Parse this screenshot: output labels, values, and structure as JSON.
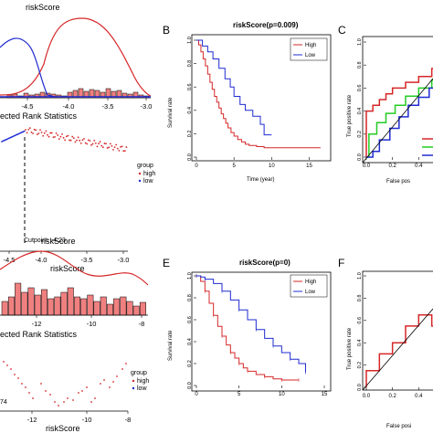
{
  "panels": {
    "a_top_title": "riskScore",
    "a_top_ticks": [
      "-4.5",
      "-4.0",
      "-3.5",
      "-3.0"
    ],
    "a_mid_title": "ected Rank Statistics",
    "a_bot_ticks": [
      "-4.5",
      "-4.0",
      "-3.5",
      "-3.0"
    ],
    "a_bot_xlabel": "riskScore",
    "a_cutpoint": "Cutpoint: -4.23",
    "a_group_title": "group",
    "a_group_high": "high",
    "a_group_low": "low",
    "b_label": "B",
    "b_title": "riskScore(p=0.009)",
    "b_ylabel": "Survival rate",
    "b_xlabel": "Time (year)",
    "b_yticks": [
      "0.0",
      "0.2",
      "0.4",
      "0.6",
      "0.8",
      "1.0"
    ],
    "b_xticks": [
      "0",
      "5",
      "10",
      "15"
    ],
    "b_legend_high": "High",
    "b_legend_low": "Low",
    "c_label": "C",
    "c_ylabel": "True positive rate",
    "c_xlabel": "False pos",
    "c_yticks": [
      "0.0",
      "0.2",
      "0.4",
      "0.6",
      "0.8",
      "1.0"
    ],
    "c_xticks": [
      "0.0",
      "0.2",
      "0.4"
    ],
    "d_top_title": "riskScore",
    "d_top_ticks": [
      "-12",
      "-10",
      "-8"
    ],
    "d_mid_title": "ected Rank Statistics",
    "d_bot_ticks": [
      "-12",
      "-10",
      "-8"
    ],
    "d_bot_xlabel": "riskScore",
    "d_cut_partial": "74",
    "d_group_title": "group",
    "d_group_high": "high",
    "d_group_low": "low",
    "e_label": "E",
    "e_title": "riskScore(p=0)",
    "e_ylabel": "Survival rate",
    "e_yticks": [
      "0.0",
      "0.2",
      "0.4",
      "0.6",
      "0.8",
      "1.0"
    ],
    "e_xticks": [
      "0",
      "5",
      "10",
      "15"
    ],
    "e_legend_high": "High",
    "e_legend_low": "Low",
    "f_label": "F",
    "f_ylabel": "True positive rate",
    "f_xlabel": "False posi",
    "f_yticks": [
      "0.0",
      "0.2",
      "0.4",
      "0.6",
      "0.8",
      "1.0"
    ],
    "f_xticks": [
      "0.0",
      "0.2",
      "0.4"
    ]
  },
  "colors": {
    "high": "#d62728",
    "low": "#1f2bd1",
    "green": "#22cc22",
    "hist": "#f08080"
  },
  "chart_data": [
    {
      "type": "line",
      "panel": "B",
      "title": "riskScore(p=0.009)",
      "xlabel": "Time (year)",
      "ylabel": "Survival rate",
      "xlim": [
        0,
        17
      ],
      "ylim": [
        0,
        1
      ],
      "series": [
        {
          "name": "High",
          "x": [
            0,
            0.3,
            0.6,
            0.9,
            1.2,
            1.5,
            1.8,
            2.1,
            2.4,
            2.7,
            3.0,
            3.3,
            3.6,
            3.9,
            4.2,
            4.6,
            5.0,
            5.5,
            6.0,
            6.5,
            7.0,
            8.0,
            9.0,
            10.0,
            12.0,
            16.5
          ],
          "y": [
            1.0,
            0.96,
            0.9,
            0.84,
            0.78,
            0.71,
            0.64,
            0.58,
            0.52,
            0.47,
            0.42,
            0.37,
            0.33,
            0.29,
            0.25,
            0.21,
            0.18,
            0.15,
            0.13,
            0.11,
            0.1,
            0.09,
            0.08,
            0.08,
            0.08,
            0.08
          ]
        },
        {
          "name": "Low",
          "x": [
            0,
            0.8,
            1.5,
            2.2,
            3.0,
            3.8,
            4.5,
            5.0,
            5.8,
            6.5,
            7.5,
            8.5,
            9.0,
            10.0
          ],
          "y": [
            1.0,
            0.95,
            0.9,
            0.84,
            0.76,
            0.67,
            0.6,
            0.52,
            0.45,
            0.4,
            0.35,
            0.28,
            0.19,
            0.19
          ]
        }
      ]
    },
    {
      "type": "line",
      "panel": "E",
      "title": "riskScore(p=0)",
      "ylabel": "Survival rate",
      "xlim": [
        0,
        15
      ],
      "ylim": [
        0,
        1
      ],
      "series": [
        {
          "name": "High",
          "x": [
            0,
            0.5,
            1.0,
            1.5,
            2.0,
            2.5,
            3.0,
            3.5,
            4.0,
            4.5,
            5.0,
            5.5,
            6.0,
            7.0,
            8.0,
            9.0,
            10.0,
            11.0,
            12.0
          ],
          "y": [
            1.0,
            0.95,
            0.86,
            0.75,
            0.64,
            0.54,
            0.45,
            0.37,
            0.3,
            0.25,
            0.2,
            0.16,
            0.13,
            0.1,
            0.08,
            0.06,
            0.05,
            0.05,
            0.05
          ]
        },
        {
          "name": "Low",
          "x": [
            0,
            0.5,
            1.0,
            2.0,
            3.0,
            4.0,
            5.0,
            6.0,
            7.0,
            8.0,
            9.0,
            10.0,
            11.0,
            12.0,
            12.8
          ],
          "y": [
            1.0,
            0.99,
            0.97,
            0.93,
            0.86,
            0.78,
            0.69,
            0.6,
            0.51,
            0.43,
            0.36,
            0.3,
            0.24,
            0.2,
            0.12
          ]
        }
      ]
    },
    {
      "type": "line",
      "panel": "C",
      "ylabel": "True positive rate",
      "xlabel": "False pos",
      "xlim": [
        0,
        0.6
      ],
      "ylim": [
        0,
        1
      ],
      "series": [
        {
          "x": [
            0,
            0.0,
            0.05,
            0.1,
            0.15,
            0.2,
            0.3,
            0.4,
            0.5,
            0.55
          ],
          "y": [
            0,
            0.4,
            0.45,
            0.5,
            0.55,
            0.6,
            0.65,
            0.7,
            0.77,
            0.8
          ]
        },
        {
          "x": [
            0,
            0.02,
            0.08,
            0.15,
            0.22,
            0.3,
            0.4,
            0.5,
            0.55
          ],
          "y": [
            0,
            0.2,
            0.3,
            0.38,
            0.45,
            0.53,
            0.6,
            0.67,
            0.7
          ]
        },
        {
          "x": [
            0,
            0.05,
            0.1,
            0.18,
            0.25,
            0.32,
            0.4,
            0.48,
            0.55
          ],
          "y": [
            0,
            0.05,
            0.15,
            0.25,
            0.35,
            0.45,
            0.52,
            0.6,
            0.8
          ]
        }
      ]
    },
    {
      "type": "line",
      "panel": "F",
      "ylabel": "True positive rate",
      "xlabel": "False posi",
      "xlim": [
        0,
        0.6
      ],
      "ylim": [
        0,
        1
      ],
      "series": [
        {
          "x": [
            0,
            0.0,
            0.1,
            0.1,
            0.2,
            0.2,
            0.3,
            0.3,
            0.4,
            0.4,
            0.5,
            0.5,
            0.6
          ],
          "y": [
            0,
            0.15,
            0.15,
            0.3,
            0.3,
            0.4,
            0.4,
            0.55,
            0.55,
            0.65,
            0.65,
            0.55,
            0.55
          ]
        }
      ]
    }
  ]
}
